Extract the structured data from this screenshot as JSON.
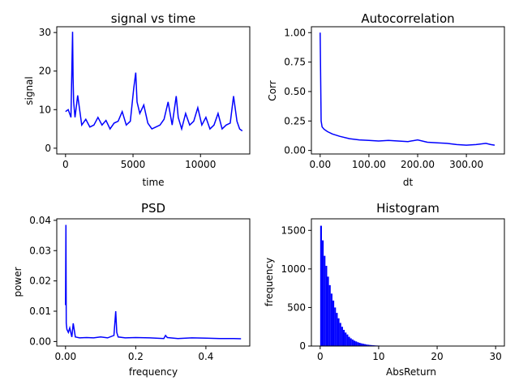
{
  "chart_data": [
    {
      "id": "signal",
      "type": "line",
      "title": "signal vs time",
      "xlabel": "time",
      "ylabel": "signal",
      "xlim": [
        -650,
        13650
      ],
      "ylim": [
        -1.5,
        31.5
      ],
      "xticks": [
        0,
        5000,
        10000
      ],
      "yticks": [
        0,
        10,
        20,
        30
      ],
      "color": "#0000ff",
      "grid": false,
      "series": [
        {
          "x": [
            0,
            200,
            400,
            520,
            560,
            600,
            700,
            900,
            1200,
            1500,
            1800,
            2100,
            2400,
            2700,
            3000,
            3300,
            3600,
            3900,
            4200,
            4500,
            4800,
            5050,
            5200,
            5300,
            5500,
            5800,
            6100,
            6400,
            6700,
            7000,
            7300,
            7600,
            7900,
            8200,
            8350,
            8600,
            8900,
            9200,
            9500,
            9800,
            10100,
            10400,
            10700,
            11000,
            11300,
            11600,
            11900,
            12200,
            12450,
            12700,
            12900,
            13100
          ],
          "y": [
            9.5,
            10,
            8,
            30.2,
            18.5,
            12,
            8,
            13.7,
            6,
            7.5,
            5.5,
            6,
            8,
            6,
            7.2,
            5,
            6.5,
            7,
            9.5,
            6,
            7,
            15.5,
            19.6,
            12,
            9,
            11.2,
            6.5,
            5,
            5.5,
            6,
            7.5,
            12,
            6,
            13.5,
            8,
            5,
            9,
            6,
            7,
            10.5,
            6,
            8,
            5,
            6,
            9,
            5,
            6,
            6.5,
            13.5,
            7,
            5,
            4.5
          ]
        }
      ]
    },
    {
      "id": "autocorr",
      "type": "line",
      "title": "Autocorrelation",
      "xlabel": "dt",
      "ylabel": "Corr",
      "xlim": [
        -18,
        378
      ],
      "ylim": [
        -0.03,
        1.05
      ],
      "xticks": [
        0,
        100,
        200,
        300
      ],
      "yticks": [
        0.0,
        0.25,
        0.5,
        0.75,
        1.0
      ],
      "color": "#0000ff",
      "grid": false,
      "series": [
        {
          "x": [
            0,
            2,
            4,
            8,
            15,
            25,
            40,
            60,
            80,
            100,
            120,
            140,
            160,
            180,
            200,
            220,
            240,
            260,
            280,
            300,
            320,
            340,
            350,
            358
          ],
          "y": [
            1.0,
            0.25,
            0.2,
            0.18,
            0.16,
            0.14,
            0.12,
            0.1,
            0.09,
            0.085,
            0.08,
            0.085,
            0.08,
            0.075,
            0.09,
            0.07,
            0.065,
            0.06,
            0.05,
            0.045,
            0.05,
            0.06,
            0.05,
            0.045
          ]
        }
      ]
    },
    {
      "id": "psd",
      "type": "line",
      "title": "PSD",
      "xlabel": "frequency",
      "ylabel": "power",
      "xlim": [
        -0.025,
        0.525
      ],
      "ylim": [
        -0.0015,
        0.0405
      ],
      "xticks": [
        0.0,
        0.2,
        0.4
      ],
      "yticks": [
        0.0,
        0.01,
        0.02,
        0.03,
        0.04
      ],
      "color": "#0000ff",
      "grid": false,
      "series": [
        {
          "x": [
            0.0,
            0.001,
            0.002,
            0.004,
            0.008,
            0.012,
            0.018,
            0.022,
            0.028,
            0.04,
            0.06,
            0.08,
            0.1,
            0.12,
            0.138,
            0.143,
            0.146,
            0.15,
            0.17,
            0.2,
            0.24,
            0.28,
            0.285,
            0.29,
            0.32,
            0.36,
            0.4,
            0.44,
            0.48,
            0.5
          ],
          "y": [
            0.012,
            0.0385,
            0.006,
            0.004,
            0.003,
            0.0045,
            0.0015,
            0.006,
            0.0015,
            0.0012,
            0.0013,
            0.0012,
            0.0015,
            0.0012,
            0.002,
            0.01,
            0.003,
            0.0015,
            0.0012,
            0.0013,
            0.0012,
            0.001,
            0.002,
            0.0013,
            0.001,
            0.0012,
            0.0011,
            0.001,
            0.001,
            0.0009
          ]
        }
      ]
    },
    {
      "id": "histogram",
      "type": "bar",
      "title": "Histogram",
      "xlabel": "AbsReturn",
      "ylabel": "frequency",
      "xlim": [
        -1.5,
        31.5
      ],
      "ylim": [
        0,
        1650
      ],
      "xticks": [
        0,
        10,
        20,
        30
      ],
      "yticks": [
        0,
        500,
        1000,
        1500
      ],
      "color": "#0000ff",
      "grid": false,
      "bin_width": 0.3,
      "bin_start": 0,
      "values": [
        1560,
        1370,
        1170,
        1040,
        900,
        790,
        680,
        590,
        500,
        430,
        360,
        300,
        250,
        210,
        175,
        150,
        120,
        100,
        85,
        70,
        60,
        50,
        42,
        35,
        30,
        25,
        20,
        17,
        14,
        12,
        10,
        8,
        7,
        6,
        5,
        4,
        3,
        3,
        2,
        2
      ]
    }
  ]
}
